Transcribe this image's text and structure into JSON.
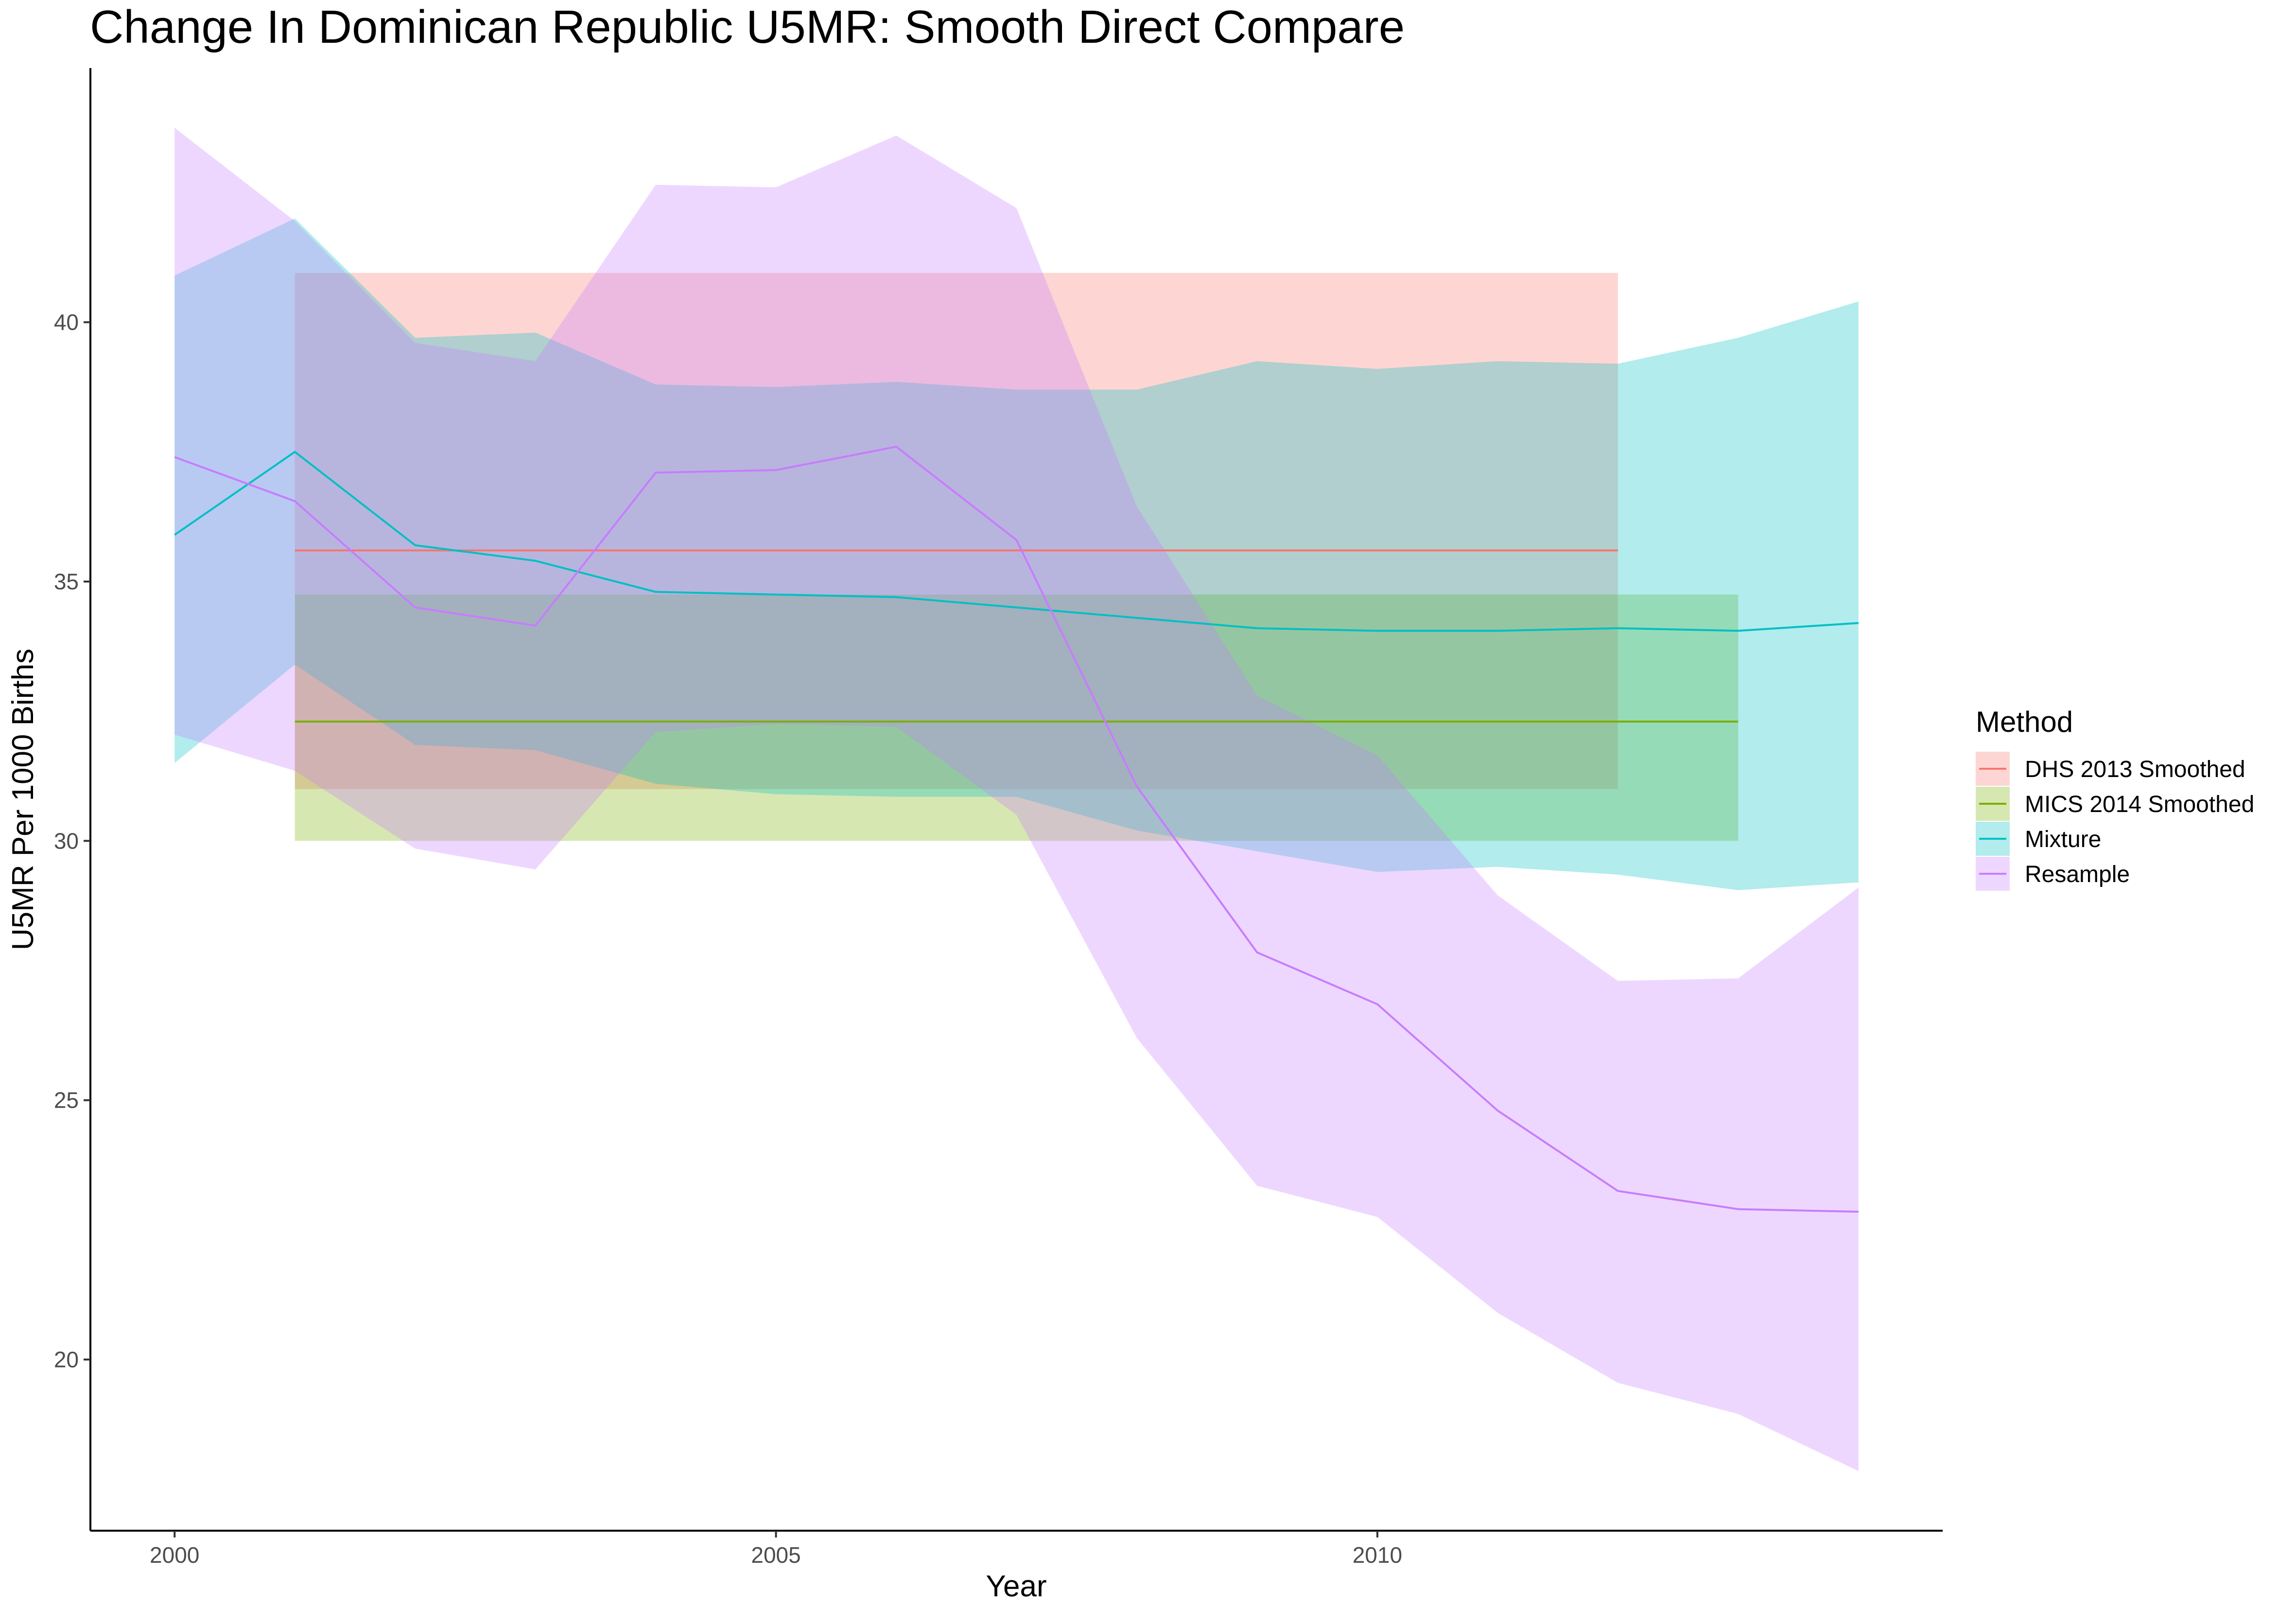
{
  "chart_data": {
    "type": "line",
    "title": "Change In Dominican Republic U5MR: Smooth Direct Compare",
    "xlabel": "Year",
    "ylabel": "U5MR Per 1000 Births",
    "xlim": [
      1999.3,
      2014.7
    ],
    "ylim": [
      16.7,
      44.9
    ],
    "x_ticks": [
      2000,
      2005,
      2010
    ],
    "x_tick_labels": [
      "2000",
      "2005",
      "2010"
    ],
    "y_ticks": [
      20,
      25,
      30,
      35,
      40
    ],
    "y_tick_labels": [
      "20",
      "25",
      "30",
      "35",
      "40"
    ],
    "grid": false,
    "legend": {
      "title": "Method",
      "position": "right"
    },
    "series": [
      {
        "name": "DHS 2013 Smoothed",
        "color": "#F8766D",
        "x": [
          2001,
          2002,
          2003,
          2004,
          2005,
          2006,
          2007,
          2008,
          2009,
          2010,
          2011,
          2012
        ],
        "y": [
          35.6,
          35.6,
          35.6,
          35.6,
          35.6,
          35.6,
          35.6,
          35.6,
          35.6,
          35.6,
          35.6,
          35.6
        ],
        "lower": [
          31.0,
          31.0,
          31.0,
          31.0,
          31.0,
          31.0,
          31.0,
          31.0,
          31.0,
          31.0,
          31.0,
          31.0
        ],
        "upper": [
          40.95,
          40.95,
          40.95,
          40.95,
          40.95,
          40.95,
          40.95,
          40.95,
          40.95,
          40.95,
          40.95,
          40.95
        ]
      },
      {
        "name": "MICS 2014 Smoothed",
        "color": "#7CAE00",
        "x": [
          2001,
          2002,
          2003,
          2004,
          2005,
          2006,
          2007,
          2008,
          2009,
          2010,
          2011,
          2012,
          2013
        ],
        "y": [
          32.3,
          32.3,
          32.3,
          32.3,
          32.3,
          32.3,
          32.3,
          32.3,
          32.3,
          32.3,
          32.3,
          32.3,
          32.3
        ],
        "lower": [
          30.0,
          30.0,
          30.0,
          30.0,
          30.0,
          30.0,
          30.0,
          30.0,
          30.0,
          30.0,
          30.0,
          30.0,
          30.0
        ],
        "upper": [
          34.75,
          34.75,
          34.75,
          34.75,
          34.75,
          34.75,
          34.75,
          34.75,
          34.75,
          34.75,
          34.75,
          34.75,
          34.75
        ]
      },
      {
        "name": "Mixture",
        "color": "#00BFC4",
        "x": [
          2000,
          2001,
          2002,
          2003,
          2004,
          2005,
          2006,
          2007,
          2008,
          2009,
          2010,
          2011,
          2012,
          2013,
          2014
        ],
        "y": [
          35.9,
          37.5,
          35.7,
          35.4,
          34.8,
          34.75,
          34.7,
          34.5,
          34.3,
          34.1,
          34.05,
          34.05,
          34.1,
          34.05,
          34.2
        ],
        "lower": [
          31.5,
          33.4,
          31.85,
          31.75,
          31.1,
          30.9,
          30.85,
          30.85,
          30.2,
          29.8,
          29.4,
          29.5,
          29.35,
          29.05,
          29.2
        ],
        "upper": [
          40.9,
          42.0,
          39.7,
          39.8,
          38.8,
          38.75,
          38.85,
          38.7,
          38.7,
          39.25,
          39.1,
          39.25,
          39.2,
          39.7,
          40.4
        ]
      },
      {
        "name": "Resample",
        "color": "#C77CFF",
        "x": [
          2000,
          2001,
          2002,
          2003,
          2004,
          2005,
          2006,
          2007,
          2008,
          2009,
          2010,
          2011,
          2012,
          2013,
          2014
        ],
        "y": [
          37.4,
          36.55,
          34.5,
          34.15,
          37.1,
          37.15,
          37.6,
          35.8,
          31.05,
          27.85,
          26.85,
          24.8,
          23.25,
          22.9,
          22.85
        ],
        "lower": [
          32.05,
          31.35,
          29.85,
          29.45,
          32.1,
          32.25,
          32.2,
          30.5,
          26.2,
          23.35,
          22.75,
          20.9,
          19.55,
          18.95,
          17.85
        ],
        "upper": [
          43.75,
          41.95,
          39.6,
          39.25,
          42.65,
          42.6,
          43.6,
          42.2,
          36.45,
          32.8,
          31.65,
          28.95,
          27.3,
          27.35,
          29.1
        ]
      }
    ]
  }
}
